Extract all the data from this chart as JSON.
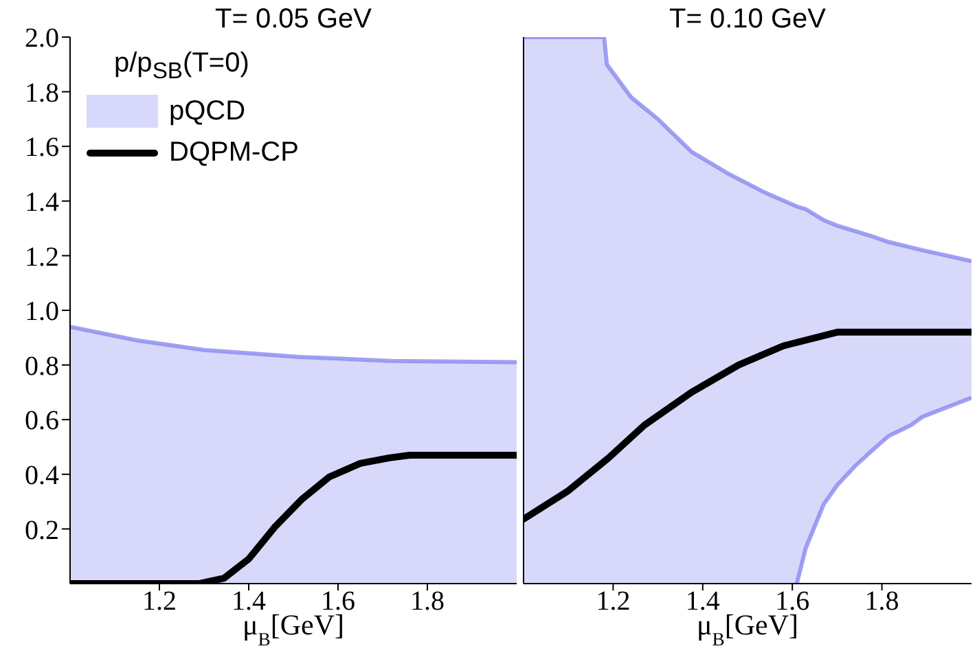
{
  "chart_data": [
    {
      "type": "line",
      "title": "T= 0.05 GeV",
      "xlabel": "μ$_{B}$[GeV]",
      "legend_title": "p/p$_{SB}$(T=0)",
      "legend": "top left",
      "xlim": [
        1.0,
        2.0
      ],
      "xticks": [
        1.2,
        1.4,
        1.6,
        1.8
      ],
      "ylim": [
        0,
        2.0
      ],
      "yticks": [
        0.2,
        0.4,
        0.6,
        0.8,
        {
          "value": 1.0,
          "label": "1.0"
        },
        1.2,
        1.4,
        1.6,
        1.8,
        {
          "value": 2.0,
          "label": "2.0"
        }
      ],
      "series": [
        {
          "name": "pQCD",
          "type": "area",
          "color": "#d8d8fa",
          "x": [
            1.0,
            1.15,
            1.3,
            1.51,
            1.72,
            2.0
          ],
          "values": [
            0.94,
            0.89,
            0.855,
            0.83,
            0.815,
            0.81
          ]
        },
        {
          "name": "DQPM-CP",
          "color": "#000000",
          "x": [
            1.0,
            1.29,
            1.345,
            1.4,
            1.46,
            1.52,
            1.58,
            1.65,
            1.715,
            1.76,
            2.0
          ],
          "values": [
            0,
            0,
            0.02,
            0.09,
            0.21,
            0.31,
            0.39,
            0.44,
            0.46,
            0.47,
            0.47
          ]
        }
      ]
    },
    {
      "type": "line",
      "title": "T= 0.10 GeV",
      "xlabel": "μ$_{B}$[GeV]",
      "legend": false,
      "tick_labels": "x",
      "xlim": [
        1.0,
        2.0
      ],
      "xticks": [
        1.2,
        1.4,
        1.6,
        1.8
      ],
      "ylim": [
        0,
        2.0
      ],
      "yticks": [
        0.2,
        0.4,
        0.6,
        0.8,
        1,
        1.2,
        1.4,
        1.6,
        1.8,
        2
      ],
      "series": [
        {
          "type": "area",
          "color": "#d8d8fa",
          "x": [
            1.0,
            1.18,
            1.186,
            1.24,
            1.3,
            1.375,
            1.457,
            1.54,
            1.61,
            1.63,
            1.67,
            1.7,
            1.74,
            1.78,
            1.815,
            1.865,
            1.89,
            2.0
          ],
          "values": [
            2.0,
            2.0,
            1.9,
            1.78,
            1.7,
            1.58,
            1.5,
            1.43,
            1.38,
            1.37,
            1.33,
            1.31,
            1.29,
            1.27,
            1.25,
            1.23,
            1.22,
            1.18
          ]
        },
        {
          "type": "area",
          "color": "#ffffff",
          "x": [
            1.61,
            1.63,
            1.67,
            1.7,
            1.74,
            1.78,
            1.815,
            1.865,
            1.89,
            2.0
          ],
          "values": [
            0,
            0.13,
            0.29,
            0.36,
            0.43,
            0.49,
            0.54,
            0.58,
            0.61,
            0.68
          ]
        },
        {
          "color": "#000000",
          "x": [
            1.0,
            1.1,
            1.19,
            1.27,
            1.375,
            1.48,
            1.58,
            1.7,
            2.0
          ],
          "values": [
            0.236,
            0.34,
            0.46,
            0.58,
            0.7,
            0.8,
            0.87,
            0.92,
            0.92
          ]
        }
      ]
    }
  ]
}
